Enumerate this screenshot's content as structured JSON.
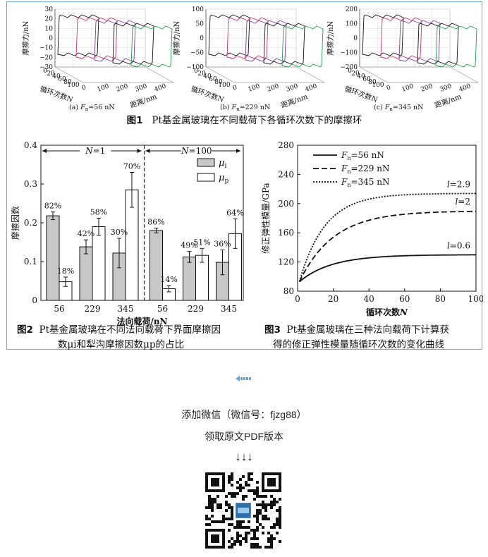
{
  "fig1": {
    "caption_num": "图1",
    "caption_text": "Pt基金属玻璃在不同载荷下各循环次数下的摩擦环",
    "panels": [
      {
        "sub": "(a) ",
        "fn": "F",
        "sub_n": "n",
        "load": "=56 nN",
        "yticks": [
          "30",
          "20",
          "10",
          "0",
          "−10",
          "−20",
          "−30"
        ]
      },
      {
        "sub": "(b) ",
        "fn": "F",
        "sub_n": "n",
        "load": "=229 nN",
        "yticks": [
          "100",
          "50",
          "0",
          "−50",
          "−100"
        ]
      },
      {
        "sub": "(c) ",
        "fn": "F",
        "sub_n": "n",
        "load": "=345 nN",
        "yticks": [
          "200",
          "100",
          "0",
          "−100",
          "−200"
        ]
      }
    ],
    "ylabel": "摩擦力/nN",
    "cycle_label": "循环次数N",
    "dist_label": "距离/nm",
    "cycle_ticks": [
      "0",
      "20",
      "40",
      "60",
      "80",
      "100"
    ],
    "dist_ticks": [
      "0",
      "100",
      "200",
      "300",
      "400"
    ]
  },
  "fig2": {
    "caption_num": "图2",
    "caption_line1": "Pt基金属玻璃在不同法向载荷下界面摩擦因",
    "caption_line2": "数μi和犁沟摩擦因数μp的占比",
    "chart_data": {
      "type": "bar",
      "ylabel": "摩擦因数",
      "xlabel": "法向载荷/nN",
      "ylim": [
        0,
        0.4
      ],
      "yticks": [
        "0",
        "0.1",
        "0.2",
        "0.3",
        "0.4"
      ],
      "groups": [
        {
          "label": "N=1",
          "categories": [
            "56",
            "229",
            "345"
          ],
          "mu_i": [
            0.218,
            0.138,
            0.122
          ],
          "mu_i_err": [
            0.01,
            0.018,
            0.038
          ],
          "mu_p": [
            0.048,
            0.19,
            0.285
          ],
          "mu_p_err": [
            0.012,
            0.022,
            0.045
          ],
          "pct_i": [
            "82%",
            "42%",
            "30%"
          ],
          "pct_p": [
            "18%",
            "58%",
            "70%"
          ]
        },
        {
          "label": "N=100",
          "categories": [
            "56",
            "229",
            "345"
          ],
          "mu_i": [
            0.18,
            0.112,
            0.098
          ],
          "mu_i_err": [
            0.006,
            0.014,
            0.032
          ],
          "mu_p": [
            0.03,
            0.116,
            0.172
          ],
          "mu_p_err": [
            0.008,
            0.018,
            0.038
          ],
          "pct_i": [
            "86%",
            "49%",
            "36%"
          ],
          "pct_p": [
            "14%",
            "51%",
            "64%"
          ]
        }
      ],
      "legend": [
        "μi",
        "μp"
      ],
      "colors": {
        "mu_i": "#c8c8c8",
        "mu_p": "#ffffff"
      }
    }
  },
  "fig3": {
    "caption_num": "图3",
    "caption_line1": "Pt基金属玻璃在三种法向载荷下计算获",
    "caption_line2": "得的修正弹性模量随循环次数的变化曲线",
    "chart_data": {
      "type": "line",
      "ylabel": "修正弹性模量/GPa",
      "xlabel": "循环次数N",
      "xlim": [
        0,
        100
      ],
      "ylim": [
        80,
        280
      ],
      "xticks": [
        "0",
        "20",
        "40",
        "60",
        "80",
        "100"
      ],
      "yticks": [
        "80",
        "120",
        "160",
        "200",
        "240",
        "280"
      ],
      "series": [
        {
          "name": "Fn=56 nN",
          "legend_main": "F",
          "legend_sub": "n",
          "legend_rest": "=56 nN",
          "style": "solid",
          "E0": 93,
          "Einf": 130,
          "k": 0.055,
          "label": "l=0.6"
        },
        {
          "name": "Fn=229 nN",
          "legend_main": "F",
          "legend_sub": "n",
          "legend_rest": "=229 nN",
          "style": "dashed",
          "E0": 93,
          "Einf": 190,
          "k": 0.052,
          "label": "l=2"
        },
        {
          "name": "Fn=345 nN",
          "legend_main": "F",
          "legend_sub": "n",
          "legend_rest": "=345 nN",
          "style": "dotted",
          "E0": 93,
          "Einf": 214,
          "k": 0.07,
          "label": "l=2.9"
        }
      ]
    }
  },
  "footer": {
    "wechat": "添加微信（微信号：fjzg88）",
    "pdf": "领取原文PDF版本",
    "arrows": "↓↓↓"
  }
}
